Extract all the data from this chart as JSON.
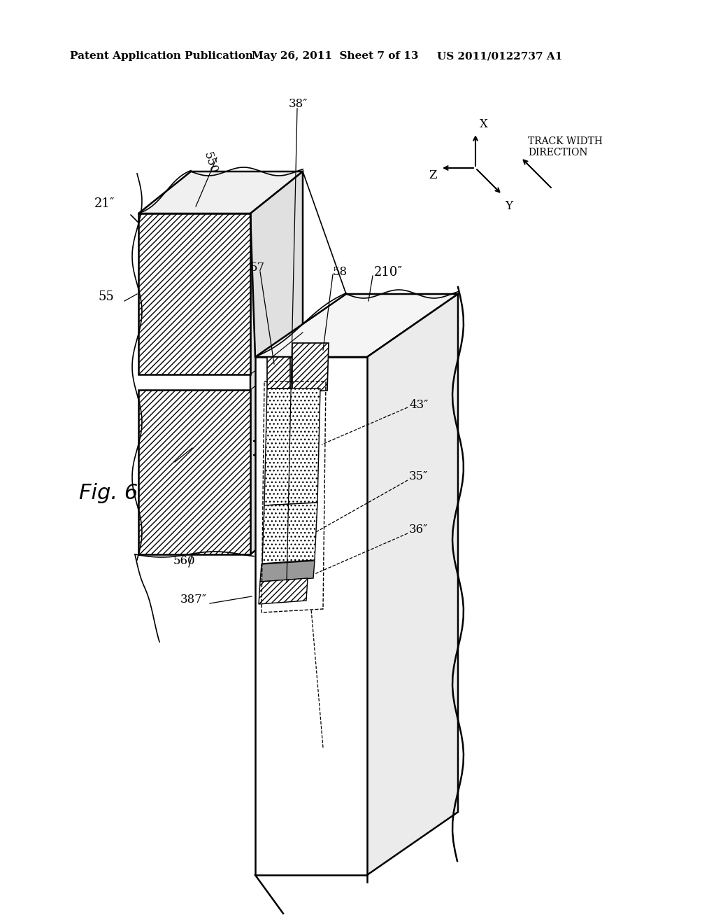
{
  "bg_color": "#ffffff",
  "header_left": "Patent Application Publication",
  "header_mid": "May 26, 2011  Sheet 7 of 13",
  "header_right": "US 2011/0122737 A1",
  "fig_label": "Fig. 6",
  "lw_main": 1.8,
  "lw_thin": 1.2,
  "anno_fs": 12,
  "header_fs": 11
}
